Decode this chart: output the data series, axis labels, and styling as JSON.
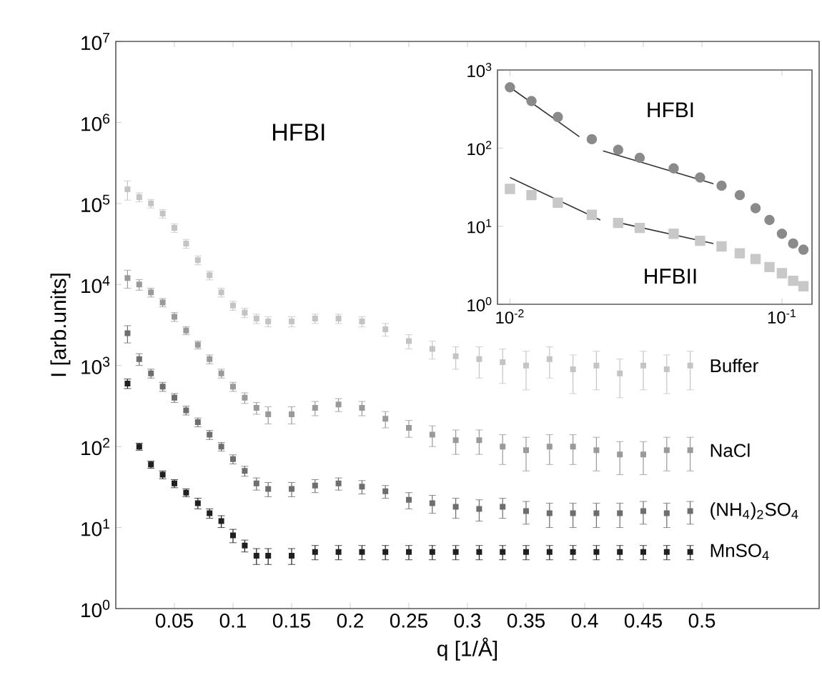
{
  "chart_data": [
    {
      "type": "scatter",
      "xlabel": "q [1/Å]",
      "ylabel": "I [arb.units]",
      "annotations": [
        "HFBI"
      ],
      "log": "y",
      "marker": "square",
      "xlim": [
        0,
        0.6
      ],
      "ylim": [
        1,
        10000000
      ],
      "xticks": [
        0.05,
        0.1,
        0.15,
        0.2,
        0.25,
        0.3,
        0.35,
        0.4,
        0.45,
        0.5
      ],
      "yticks": [
        {
          "value": 1,
          "label": "10$^{0}$"
        },
        {
          "value": 10,
          "label": "10$^{1}$"
        },
        {
          "value": 100,
          "label": "10$^{2}$"
        },
        {
          "value": 1000,
          "label": "10$^{3}$"
        },
        {
          "value": 10000,
          "label": "10$^{4}$"
        },
        {
          "value": 100000,
          "label": "10$^{5}$"
        },
        {
          "value": 1000000,
          "label": "10$^{6}$"
        },
        {
          "value": 10000000,
          "label": "10$^{7}$"
        }
      ],
      "series": [
        {
          "name": "Buffer",
          "color": "#c4c4c4",
          "x": [
            0.01,
            0.02,
            0.03,
            0.04,
            0.05,
            0.06,
            0.07,
            0.08,
            0.09,
            0.1,
            0.11,
            0.12,
            0.13,
            0.15,
            0.17,
            0.19,
            0.21,
            0.23,
            0.25,
            0.27,
            0.29,
            0.31,
            0.33,
            0.35,
            0.37,
            0.39,
            0.41,
            0.43,
            0.45,
            0.47,
            0.49
          ],
          "values": [
            150000,
            120000,
            100000,
            75000,
            50000,
            32000,
            20000,
            13000,
            8000,
            5500,
            4500,
            3800,
            3500,
            3500,
            3800,
            3800,
            3500,
            2800,
            2000,
            1600,
            1300,
            1200,
            1100,
            1000,
            1200,
            900,
            1000,
            800,
            1000,
            900,
            1000
          ],
          "errors": [
            40000,
            15000,
            12000,
            9000,
            6000,
            4000,
            2500,
            1600,
            1000,
            700,
            600,
            500,
            500,
            500,
            500,
            500,
            500,
            500,
            400,
            400,
            400,
            500,
            500,
            500,
            500,
            450,
            500,
            400,
            500,
            450,
            500
          ]
        },
        {
          "name": "NaCl",
          "color": "#9a9a9a",
          "x": [
            0.01,
            0.02,
            0.03,
            0.04,
            0.05,
            0.06,
            0.07,
            0.08,
            0.09,
            0.1,
            0.11,
            0.12,
            0.13,
            0.15,
            0.17,
            0.19,
            0.21,
            0.23,
            0.25,
            0.27,
            0.29,
            0.31,
            0.33,
            0.35,
            0.37,
            0.39,
            0.41,
            0.43,
            0.45,
            0.47,
            0.49
          ],
          "values": [
            12000,
            10000,
            8000,
            6000,
            4000,
            2700,
            1800,
            1200,
            800,
            550,
            400,
            300,
            250,
            250,
            300,
            330,
            300,
            220,
            170,
            140,
            120,
            120,
            100,
            90,
            100,
            100,
            90,
            80,
            80,
            90,
            90
          ],
          "errors": [
            3000,
            1500,
            1000,
            700,
            500,
            300,
            200,
            150,
            100,
            70,
            60,
            50,
            60,
            60,
            60,
            60,
            60,
            50,
            40,
            40,
            40,
            40,
            40,
            40,
            40,
            40,
            40,
            35,
            35,
            40,
            40
          ]
        },
        {
          "name": "(NH$_{4}$)$_{2}$SO$_{4}$",
          "color": "#6e6e6e",
          "x": [
            0.01,
            0.02,
            0.03,
            0.04,
            0.05,
            0.06,
            0.07,
            0.08,
            0.09,
            0.1,
            0.11,
            0.12,
            0.13,
            0.15,
            0.17,
            0.19,
            0.21,
            0.23,
            0.25,
            0.27,
            0.29,
            0.31,
            0.33,
            0.35,
            0.37,
            0.39,
            0.41,
            0.43,
            0.45,
            0.47,
            0.49
          ],
          "values": [
            2500,
            1200,
            800,
            550,
            400,
            280,
            200,
            140,
            100,
            70,
            50,
            35,
            30,
            30,
            33,
            35,
            32,
            28,
            22,
            20,
            18,
            17,
            18,
            16,
            15,
            15,
            15,
            15,
            16,
            15,
            16
          ],
          "errors": [
            600,
            200,
            100,
            70,
            50,
            35,
            25,
            18,
            12,
            9,
            7,
            6,
            6,
            6,
            6,
            6,
            6,
            5,
            5,
            5,
            5,
            5,
            5,
            5,
            5,
            5,
            5,
            5,
            5,
            5,
            5
          ]
        },
        {
          "name": "MnSO$_{4}$",
          "color": "#202020",
          "x": [
            0.01,
            0.02,
            0.03,
            0.04,
            0.05,
            0.06,
            0.07,
            0.08,
            0.09,
            0.1,
            0.11,
            0.12,
            0.13,
            0.15,
            0.17,
            0.19,
            0.21,
            0.23,
            0.25,
            0.27,
            0.29,
            0.31,
            0.33,
            0.35,
            0.37,
            0.39,
            0.41,
            0.43,
            0.45,
            0.47,
            0.49
          ],
          "values": [
            600,
            100,
            60,
            45,
            35,
            27,
            20,
            15,
            12,
            8,
            6,
            4.5,
            4.5,
            4.5,
            5,
            5,
            5,
            5,
            5,
            5,
            5,
            5,
            5,
            5,
            5,
            5,
            5,
            5,
            5,
            5,
            5
          ],
          "errors": [
            80,
            10,
            6,
            5,
            4,
            3,
            3,
            2,
            2,
            1.5,
            1,
            1,
            1,
            1,
            1,
            1,
            1,
            1,
            1,
            1,
            1,
            1,
            1,
            1,
            1,
            1,
            1,
            1,
            1,
            1,
            1
          ]
        }
      ]
    },
    {
      "type": "scatter",
      "annotations": [
        "HFBI",
        "HFBII"
      ],
      "log": "xy",
      "xlim": [
        0.009,
        0.129
      ],
      "ylim": [
        1,
        1000
      ],
      "xticks": [
        {
          "value": 0.01,
          "label": "10$^{-2}$"
        },
        {
          "value": 0.1,
          "label": "10$^{-1}$"
        }
      ],
      "yticks": [
        {
          "value": 1,
          "label": "10$^{0}$"
        },
        {
          "value": 10,
          "label": "10$^{1}$"
        },
        {
          "value": 100,
          "label": "10$^{2}$"
        },
        {
          "value": 1000,
          "label": "10$^{3}$"
        }
      ],
      "series": [
        {
          "color": "#8a8a8a",
          "marker": "circle",
          "x": [
            0.01,
            0.012,
            0.015,
            0.02,
            0.025,
            0.03,
            0.04,
            0.05,
            0.06,
            0.07,
            0.08,
            0.09,
            0.1,
            0.11,
            0.12
          ],
          "values": [
            600,
            400,
            250,
            130,
            95,
            75,
            55,
            42,
            33,
            25,
            17,
            12,
            8,
            6,
            5
          ]
        },
        {
          "color": "#c8c8c8",
          "marker": "square",
          "x": [
            0.01,
            0.012,
            0.015,
            0.02,
            0.025,
            0.03,
            0.04,
            0.05,
            0.06,
            0.07,
            0.08,
            0.09,
            0.1,
            0.11,
            0.12
          ],
          "values": [
            30,
            25,
            20,
            14,
            11,
            9.5,
            8,
            6.5,
            5.5,
            4.5,
            3.8,
            3,
            2.5,
            2,
            1.7
          ]
        },
        {
          "type": "line",
          "color": "#333333",
          "marker": "none",
          "x": [
            0.01,
            0.018
          ],
          "values": [
            600,
            140
          ]
        },
        {
          "type": "line",
          "color": "#333333",
          "marker": "none",
          "x": [
            0.022,
            0.056
          ],
          "values": [
            92,
            35
          ]
        },
        {
          "type": "line",
          "color": "#333333",
          "marker": "none",
          "x": [
            0.01,
            0.0215
          ],
          "values": [
            42,
            12
          ]
        },
        {
          "type": "line",
          "color": "#333333",
          "marker": "none",
          "x": [
            0.0254,
            0.056
          ],
          "values": [
            11,
            6
          ]
        }
      ]
    }
  ]
}
